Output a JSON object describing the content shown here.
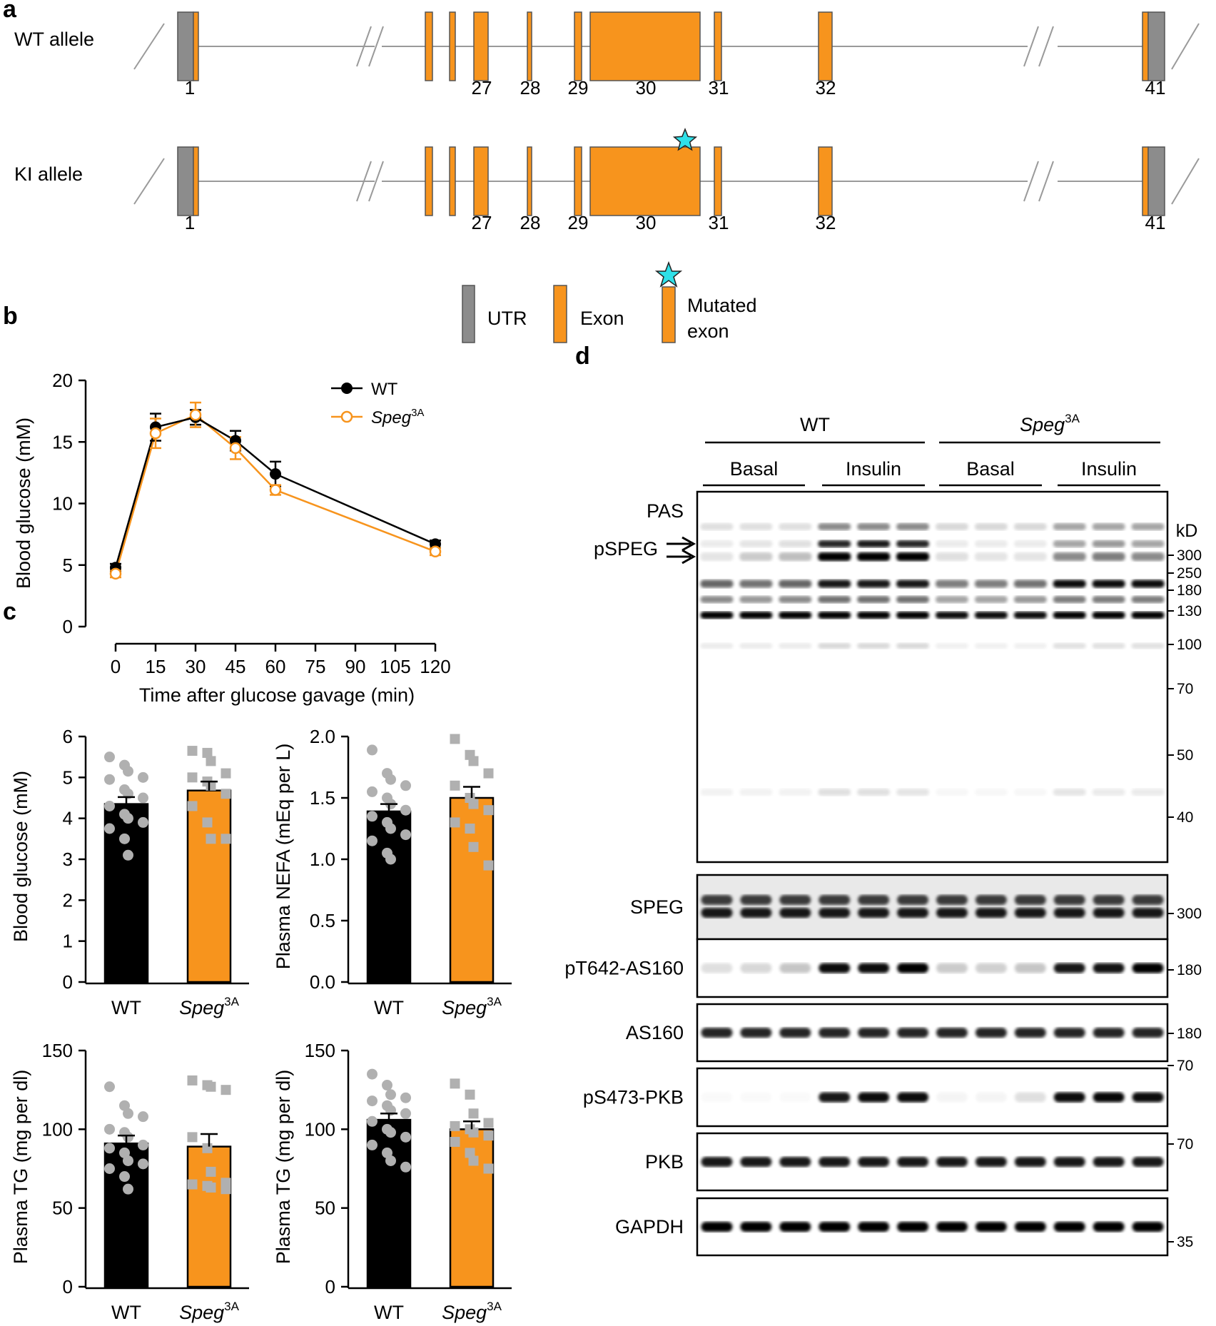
{
  "panels": {
    "a": "a",
    "b": "b",
    "c": "c",
    "d": "d"
  },
  "panel_a": {
    "rows": [
      {
        "label": "WT allele"
      },
      {
        "label": "KI allele"
      }
    ],
    "exon_numbers": [
      "1",
      "27",
      "28",
      "29",
      "30",
      "31",
      "32",
      "41"
    ],
    "legend": {
      "utr": "UTR",
      "exon": "Exon",
      "mutated_line1": "Mutated",
      "mutated_line2": "exon"
    },
    "colors": {
      "exon": "#F7941D",
      "utr": "#8C8C8C",
      "star": "#2FE0E8",
      "line": "#9A9A9A"
    }
  },
  "chart_data": [
    {
      "id": "b",
      "type": "line",
      "xlabel": "Time after glucose gavage (min)",
      "ylabel": "Blood glucose (mM)",
      "ylim": [
        0,
        20
      ],
      "yticks": [
        "0",
        "5",
        "10",
        "15",
        "20"
      ],
      "xticks": [
        "0",
        "15",
        "30",
        "45",
        "60",
        "75",
        "90",
        "105",
        "120"
      ],
      "series": [
        {
          "name": "WT",
          "name_sup": "",
          "color": "#000000",
          "filled": true,
          "x": [
            0,
            15,
            30,
            45,
            60,
            120
          ],
          "y": [
            4.8,
            16.2,
            17.0,
            15.1,
            12.4,
            6.7
          ],
          "err": [
            0.3,
            1.1,
            0.6,
            0.8,
            1.0,
            0.3
          ]
        },
        {
          "name": "Speg",
          "name_sup": "3A",
          "color": "#F7941D",
          "filled": false,
          "x": [
            0,
            15,
            30,
            45,
            60,
            120
          ],
          "y": [
            4.3,
            15.7,
            17.2,
            14.5,
            11.1,
            6.1
          ],
          "err": [
            0.3,
            1.2,
            1.0,
            0.9,
            0.4,
            0.3
          ]
        }
      ]
    },
    {
      "id": "c1",
      "type": "bar",
      "ylabel": "Blood glucose (mM)",
      "ylim": [
        0,
        6
      ],
      "yticks": [
        "0",
        "1",
        "2",
        "3",
        "4",
        "5",
        "6"
      ],
      "categories": [
        "WT",
        "Speg"
      ],
      "category_sup": [
        "",
        "3A"
      ],
      "values": [
        4.35,
        4.68
      ],
      "sem": [
        0.17,
        0.22
      ],
      "points": [
        [
          5.5,
          5.3,
          5.15,
          5.0,
          4.95,
          4.7,
          4.6,
          4.5,
          4.3,
          4.1,
          4.0,
          3.9,
          3.75,
          3.5,
          3.1
        ],
        [
          5.65,
          5.6,
          5.4,
          5.1,
          5.0,
          4.9,
          4.8,
          4.6,
          4.3,
          3.9,
          3.5,
          3.5
        ]
      ]
    },
    {
      "id": "c2",
      "type": "bar",
      "ylabel": "Plasma NEFA (mEq per L)",
      "ylim": [
        0,
        2
      ],
      "yticks": [
        "0.0",
        "0.5",
        "1.0",
        "1.5",
        "2.0"
      ],
      "categories": [
        "WT",
        "Speg"
      ],
      "category_sup": [
        "",
        "3A"
      ],
      "values": [
        1.39,
        1.5
      ],
      "sem": [
        0.06,
        0.09
      ],
      "points": [
        [
          1.89,
          1.7,
          1.65,
          1.6,
          1.55,
          1.5,
          1.45,
          1.4,
          1.35,
          1.3,
          1.25,
          1.2,
          1.15,
          1.05,
          1.0
        ],
        [
          1.98,
          1.85,
          1.8,
          1.7,
          1.6,
          1.5,
          1.45,
          1.4,
          1.3,
          1.25,
          1.1,
          0.95
        ]
      ]
    },
    {
      "id": "c3",
      "type": "bar",
      "ylabel": "Plasma TG (mg per dl)",
      "ylim": [
        0,
        150
      ],
      "yticks": [
        "0",
        "50",
        "100",
        "150"
      ],
      "categories": [
        "WT",
        "Speg"
      ],
      "category_sup": [
        "",
        "3A"
      ],
      "values": [
        91,
        89
      ],
      "sem": [
        5,
        8
      ],
      "points": [
        [
          127,
          115,
          110,
          108,
          100,
          98,
          95,
          90,
          88,
          85,
          80,
          78,
          75,
          70,
          62
        ],
        [
          131,
          128,
          127,
          125,
          95,
          88,
          73,
          66,
          65,
          64,
          63,
          62
        ]
      ]
    },
    {
      "id": "c4",
      "type": "bar",
      "ylabel": "Plasma TG (mg per dl)",
      "ylim": [
        0,
        150
      ],
      "yticks": [
        "0",
        "50",
        "100",
        "150"
      ],
      "categories": [
        "WT",
        "Speg"
      ],
      "category_sup": [
        "",
        "3A"
      ],
      "values": [
        106,
        100
      ],
      "sem": [
        4,
        5
      ],
      "points": [
        [
          135,
          128,
          122,
          120,
          118,
          115,
          112,
          110,
          105,
          100,
          98,
          95,
          90,
          85,
          80,
          76
        ],
        [
          129,
          122,
          110,
          104,
          102,
          100,
          98,
          96,
          92,
          85,
          80,
          75
        ]
      ]
    }
  ],
  "panel_d": {
    "groups": [
      {
        "label": "WT",
        "sup": ""
      },
      {
        "label": "Speg",
        "sup": "3A"
      }
    ],
    "conditions": [
      "Basal",
      "Insulin",
      "Basal",
      "Insulin"
    ],
    "unit": "kD",
    "pas_label": "PAS",
    "pspeg_label": "pSPEG",
    "pas_markers": [
      "300",
      "250",
      "180",
      "130",
      "100",
      "70",
      "50",
      "40"
    ],
    "blots": [
      {
        "label": "SPEG",
        "marker": "300"
      },
      {
        "label": "pT642-AS160",
        "marker": "180"
      },
      {
        "label": "AS160",
        "marker": "180"
      },
      {
        "label": "pS473-PKB",
        "marker": "70"
      },
      {
        "label": "PKB",
        "marker": "70"
      },
      {
        "label": "GAPDH",
        "marker": "35"
      }
    ],
    "band_intensity": {
      "pT642-AS160": [
        0.12,
        0.15,
        0.22,
        0.95,
        0.95,
        1.0,
        0.2,
        0.18,
        0.22,
        0.9,
        0.92,
        1.0
      ],
      "pS473-PKB": [
        0.02,
        0.02,
        0.02,
        0.9,
        0.95,
        0.95,
        0.04,
        0.04,
        0.12,
        0.95,
        0.97,
        0.95
      ]
    }
  }
}
